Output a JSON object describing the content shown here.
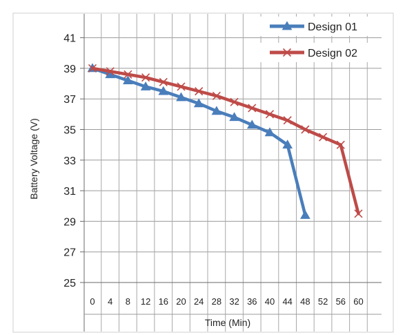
{
  "chart_data": {
    "type": "line",
    "title": "",
    "xlabel": "Time (Min)",
    "ylabel": "Battery Voltage (V)",
    "x": [
      0,
      4,
      8,
      12,
      16,
      20,
      24,
      28,
      32,
      36,
      40,
      44,
      48,
      52,
      56,
      60
    ],
    "x_tick_labels": [
      "0",
      "4",
      "8",
      "12",
      "16",
      "20",
      "24",
      "28",
      "32",
      "36",
      "40",
      "44",
      "48",
      "52",
      "56",
      "60"
    ],
    "y_ticks": [
      25,
      27,
      29,
      31,
      33,
      35,
      37,
      39,
      41
    ],
    "y_tick_labels": [
      "25",
      "27",
      "29",
      "31",
      "33",
      "35",
      "37",
      "39",
      "41"
    ],
    "ylim": [
      25,
      42
    ],
    "grid": true,
    "legend_position": "top-right",
    "series": [
      {
        "name": "Design 01",
        "color": "#4a7ebb",
        "marker": "triangle",
        "x": [
          0,
          4,
          8,
          12,
          16,
          20,
          24,
          28,
          32,
          36,
          40,
          44,
          48
        ],
        "values": [
          39.0,
          38.6,
          38.2,
          37.8,
          37.5,
          37.1,
          36.7,
          36.2,
          35.8,
          35.3,
          34.8,
          34.0,
          29.4
        ]
      },
      {
        "name": "Design 02",
        "color": "#be4b48",
        "marker": "x",
        "x": [
          0,
          4,
          8,
          12,
          16,
          20,
          24,
          28,
          32,
          36,
          40,
          44,
          48,
          52,
          56,
          60
        ],
        "values": [
          39.0,
          38.8,
          38.6,
          38.4,
          38.1,
          37.8,
          37.5,
          37.2,
          36.8,
          36.4,
          36.0,
          35.6,
          35.0,
          34.5,
          34.0,
          29.5
        ]
      }
    ]
  }
}
